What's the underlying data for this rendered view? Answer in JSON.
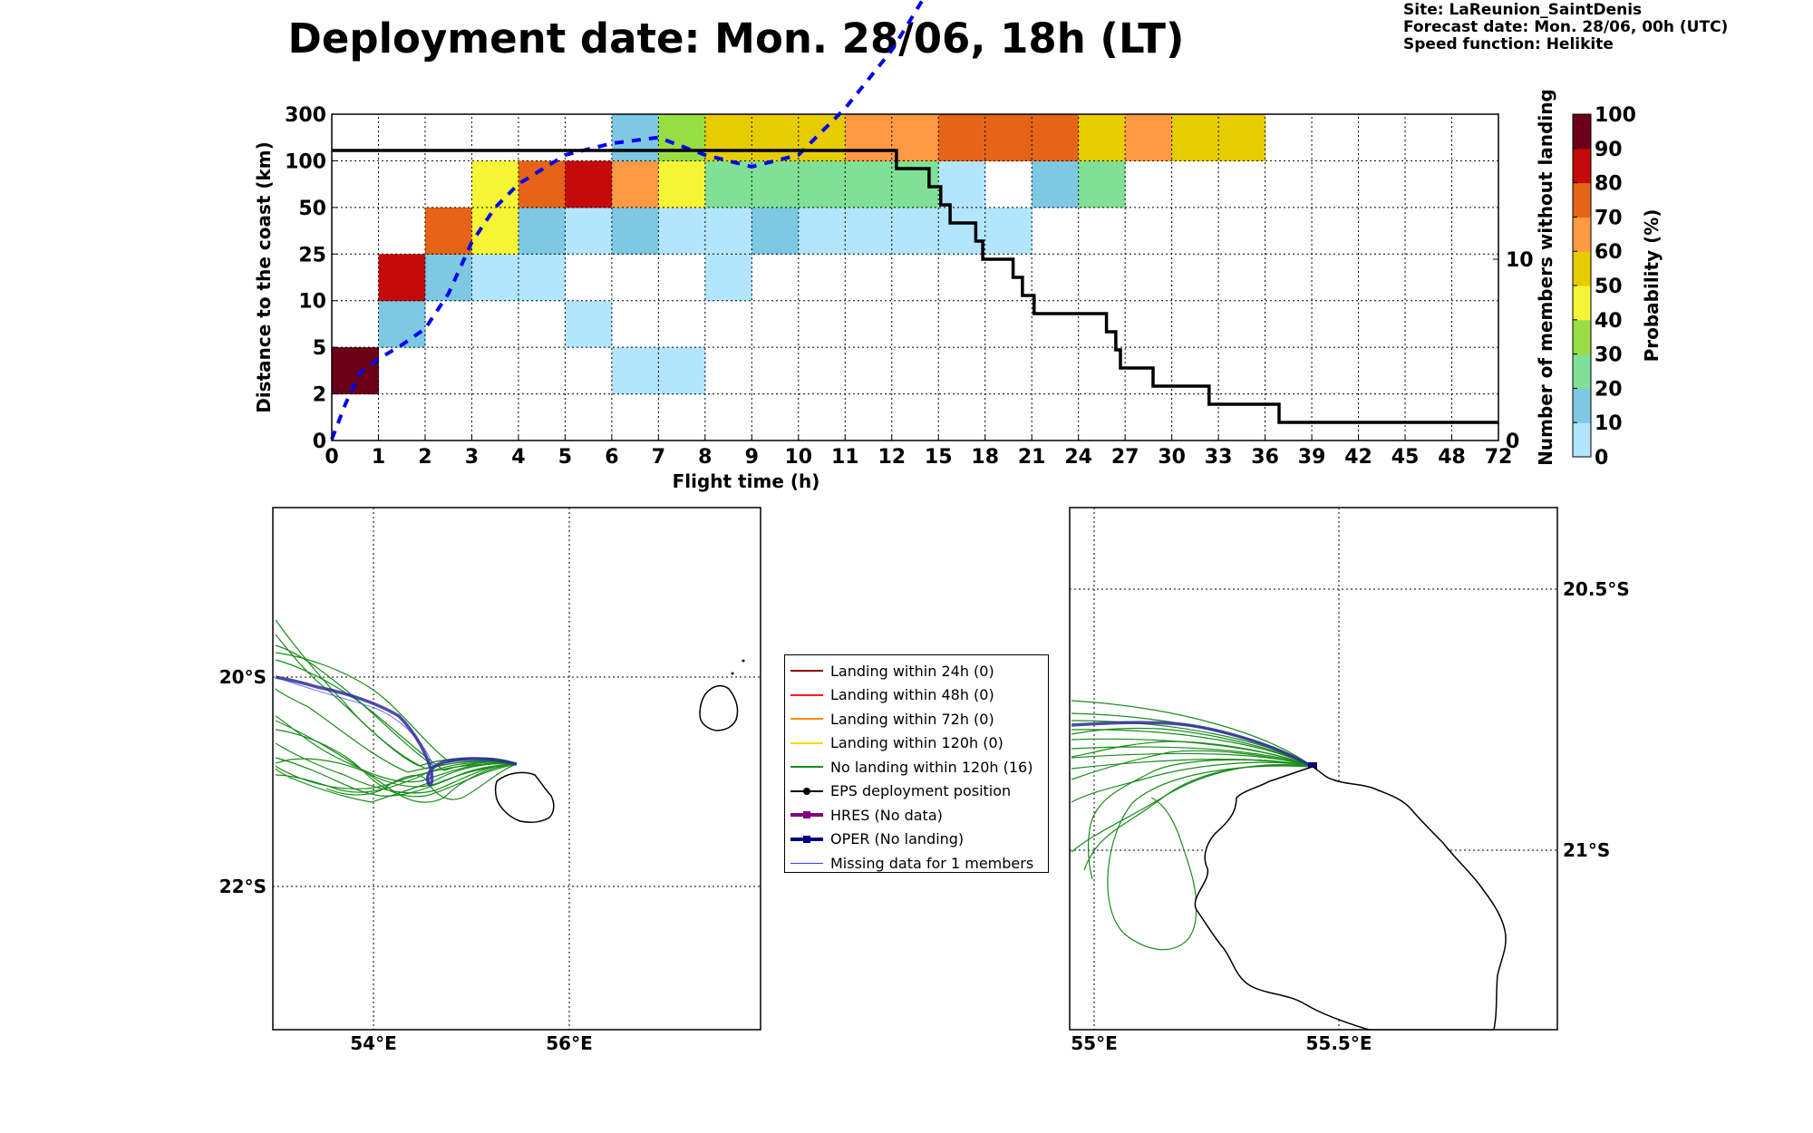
{
  "header": {
    "title": "Deployment date: Mon. 28/06, 18h (LT)",
    "site": "Site: LaReunion_SaintDenis",
    "forecast": "Forecast date: Mon. 28/06, 00h (UTC)",
    "speed": "Speed function: Helikite"
  },
  "chart_data": [
    {
      "type": "heatmap",
      "xlabel": "Flight time (h)",
      "ylabel": "Distance to the coast (km)",
      "y2label": "Number of members without landing",
      "colorbar_label": "Probability (%)",
      "x_ticks": [
        "0",
        "1",
        "2",
        "3",
        "4",
        "5",
        "6",
        "7",
        "8",
        "9",
        "10",
        "11",
        "12",
        "15",
        "18",
        "21",
        "24",
        "27",
        "30",
        "33",
        "36",
        "39",
        "42",
        "45",
        "48",
        "72"
      ],
      "y_ticks": [
        "0",
        "2",
        "5",
        "10",
        "25",
        "50",
        "100",
        "300"
      ],
      "y2_ticks": [
        "0",
        "10"
      ],
      "colorbar_ticks": [
        "0",
        "10",
        "20",
        "30",
        "40",
        "50",
        "60",
        "70",
        "80",
        "90",
        "100"
      ],
      "colorbar_colors": [
        "#b3e5fc",
        "#7ec8e3",
        "#80e095",
        "#99dd44",
        "#f5f535",
        "#e6cc00",
        "#ff9944",
        "#e66417",
        "#c40a0a",
        "#6b0016"
      ],
      "grid": true,
      "cells": [
        {
          "col": 0,
          "row": 1,
          "bin": 9
        },
        {
          "col": 1,
          "row": 2,
          "bin": 1
        },
        {
          "col": 1,
          "row": 3,
          "bin": 8
        },
        {
          "col": 2,
          "row": 3,
          "bin": 1
        },
        {
          "col": 2,
          "row": 4,
          "bin": 7
        },
        {
          "col": 3,
          "row": 3,
          "bin": 0
        },
        {
          "col": 3,
          "row": 4,
          "bin": 4
        },
        {
          "col": 3,
          "row": 5,
          "bin": 4
        },
        {
          "col": 4,
          "row": 3,
          "bin": 0
        },
        {
          "col": 4,
          "row": 4,
          "bin": 1
        },
        {
          "col": 4,
          "row": 5,
          "bin": 7
        },
        {
          "col": 5,
          "row": 2,
          "bin": 0
        },
        {
          "col": 5,
          "row": 4,
          "bin": 0
        },
        {
          "col": 5,
          "row": 5,
          "bin": 8
        },
        {
          "col": 6,
          "row": 1,
          "bin": 0
        },
        {
          "col": 6,
          "row": 4,
          "bin": 1
        },
        {
          "col": 6,
          "row": 5,
          "bin": 6
        },
        {
          "col": 6,
          "row": 6,
          "bin": 1
        },
        {
          "col": 7,
          "row": 1,
          "bin": 0
        },
        {
          "col": 7,
          "row": 4,
          "bin": 0
        },
        {
          "col": 7,
          "row": 5,
          "bin": 4
        },
        {
          "col": 7,
          "row": 6,
          "bin": 3
        },
        {
          "col": 8,
          "row": 3,
          "bin": 0
        },
        {
          "col": 8,
          "row": 4,
          "bin": 0
        },
        {
          "col": 8,
          "row": 5,
          "bin": 2
        },
        {
          "col": 8,
          "row": 6,
          "bin": 5
        },
        {
          "col": 9,
          "row": 4,
          "bin": 1
        },
        {
          "col": 9,
          "row": 5,
          "bin": 2
        },
        {
          "col": 9,
          "row": 6,
          "bin": 5
        },
        {
          "col": 10,
          "row": 4,
          "bin": 0
        },
        {
          "col": 10,
          "row": 5,
          "bin": 2
        },
        {
          "col": 10,
          "row": 6,
          "bin": 5
        },
        {
          "col": 11,
          "row": 4,
          "bin": 0
        },
        {
          "col": 11,
          "row": 5,
          "bin": 2
        },
        {
          "col": 11,
          "row": 6,
          "bin": 6
        },
        {
          "col": 12,
          "row": 4,
          "bin": 0
        },
        {
          "col": 12,
          "row": 5,
          "bin": 2
        },
        {
          "col": 12,
          "row": 6,
          "bin": 6
        },
        {
          "col": 13,
          "row": 4,
          "bin": 0
        },
        {
          "col": 13,
          "row": 5,
          "bin": 0
        },
        {
          "col": 13,
          "row": 6,
          "bin": 7
        },
        {
          "col": 14,
          "row": 4,
          "bin": 0
        },
        {
          "col": 14,
          "row": 6,
          "bin": 7
        },
        {
          "col": 15,
          "row": 5,
          "bin": 1
        },
        {
          "col": 15,
          "row": 6,
          "bin": 7
        },
        {
          "col": 16,
          "row": 5,
          "bin": 2
        },
        {
          "col": 16,
          "row": 6,
          "bin": 5
        },
        {
          "col": 17,
          "row": 6,
          "bin": 6
        },
        {
          "col": 18,
          "row": 6,
          "bin": 5
        },
        {
          "col": 19,
          "row": 6,
          "bin": 5
        }
      ],
      "members_without_landing": [
        {
          "x": 0,
          "y": 16
        },
        {
          "x": 12.1,
          "y": 16
        },
        {
          "x": 12.1,
          "y": 15
        },
        {
          "x": 12.8,
          "y": 15
        },
        {
          "x": 12.8,
          "y": 14
        },
        {
          "x": 13.05,
          "y": 14
        },
        {
          "x": 13.05,
          "y": 13
        },
        {
          "x": 13.25,
          "y": 13
        },
        {
          "x": 13.25,
          "y": 12
        },
        {
          "x": 13.8,
          "y": 12
        },
        {
          "x": 13.8,
          "y": 11
        },
        {
          "x": 13.95,
          "y": 11
        },
        {
          "x": 13.95,
          "y": 10
        },
        {
          "x": 14.6,
          "y": 10
        },
        {
          "x": 14.6,
          "y": 9
        },
        {
          "x": 14.8,
          "y": 9
        },
        {
          "x": 14.8,
          "y": 8
        },
        {
          "x": 15.05,
          "y": 8
        },
        {
          "x": 15.05,
          "y": 7
        },
        {
          "x": 16.6,
          "y": 7
        },
        {
          "x": 16.6,
          "y": 6
        },
        {
          "x": 16.8,
          "y": 6
        },
        {
          "x": 16.8,
          "y": 5
        },
        {
          "x": 16.9,
          "y": 5
        },
        {
          "x": 16.9,
          "y": 4
        },
        {
          "x": 17.6,
          "y": 4
        },
        {
          "x": 17.6,
          "y": 3
        },
        {
          "x": 18.8,
          "y": 3
        },
        {
          "x": 18.8,
          "y": 2
        },
        {
          "x": 20.3,
          "y": 2
        },
        {
          "x": 20.3,
          "y": 1
        },
        {
          "x": 25,
          "y": 1
        }
      ],
      "median_distance_curve": [
        {
          "x": 0,
          "y": 0.1
        },
        {
          "x": 0.3,
          "y": 3.2
        },
        {
          "x": 0.6,
          "y": 5.8
        },
        {
          "x": 1,
          "y": 7
        },
        {
          "x": 1.5,
          "y": 8.2
        },
        {
          "x": 2,
          "y": 9.6
        },
        {
          "x": 2.5,
          "y": 12.6
        },
        {
          "x": 3,
          "y": 17
        },
        {
          "x": 3.5,
          "y": 20
        },
        {
          "x": 4,
          "y": 22
        },
        {
          "x": 5,
          "y": 24.5
        },
        {
          "x": 6,
          "y": 25.5
        },
        {
          "x": 7,
          "y": 26
        },
        {
          "x": 8,
          "y": 24.5
        },
        {
          "x": 9,
          "y": 23.5
        },
        {
          "x": 10,
          "y": 24.5
        },
        {
          "x": 11,
          "y": 28.5
        },
        {
          "x": 12,
          "y": 33.5
        },
        {
          "x": 13,
          "y": 40
        },
        {
          "x": 14,
          "y": 49
        },
        {
          "x": 14.5,
          "y": 53
        }
      ]
    }
  ],
  "legend": {
    "items": [
      {
        "label": "Landing within 24h (0)",
        "color": "#8b0000",
        "marker": "none",
        "width": 2
      },
      {
        "label": "Landing within 48h (0)",
        "color": "#ff1a1a",
        "marker": "none",
        "width": 2
      },
      {
        "label": "Landing within 72h (0)",
        "color": "#ff8c00",
        "marker": "none",
        "width": 2
      },
      {
        "label": "Landing within 120h (0)",
        "color": "#ffd700",
        "marker": "none",
        "width": 2
      },
      {
        "label": "No landing within 120h (16)",
        "color": "#1a8c1a",
        "marker": "none",
        "width": 2
      },
      {
        "label": "EPS deployment position",
        "color": "#000000",
        "marker": "circle",
        "width": 2
      },
      {
        "label": "HRES (No data)",
        "color": "#800080",
        "marker": "square",
        "width": 4
      },
      {
        "label": "OPER (No landing)",
        "color": "#000080",
        "marker": "square",
        "width": 4
      },
      {
        "label": "Missing data for 1 members",
        "color": "#3b3bff",
        "marker": "none",
        "width": 1
      }
    ]
  },
  "maps": {
    "left": {
      "lon_labels": [
        "54°E",
        "56°E"
      ],
      "lat_labels": [
        "20°S",
        "22°S"
      ]
    },
    "right": {
      "lon_labels": [
        "55°E",
        "55.5°E"
      ],
      "lat_labels": [
        "20.5°S",
        "21°S"
      ]
    }
  }
}
